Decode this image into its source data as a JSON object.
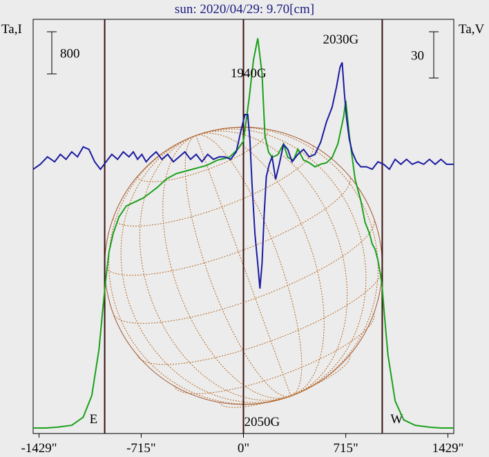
{
  "chart_data": {
    "type": "line",
    "title": "sun: 2020/04/29: 9.70[cm]",
    "y_left_label": "Ta,I",
    "y_right_label": "Ta,V",
    "scale_bar_left": "800",
    "scale_bar_right": "30",
    "x_ticks": [
      "-1429\"",
      "-715\"",
      "0\"",
      "715\"",
      "1429\""
    ],
    "x_tick_values": [
      -1429,
      -715,
      0,
      715,
      1429
    ],
    "xlim": [
      -1470,
      1470
    ],
    "limb_markers": [
      {
        "label": "E",
        "x": -970
      },
      {
        "label": "W",
        "x": 970
      }
    ],
    "annotations": [
      {
        "label": "1940G",
        "x": 35
      },
      {
        "label": "2030G",
        "x": 680
      },
      {
        "label": "2050G",
        "x": 130
      }
    ],
    "series": [
      {
        "color": "#1aa01a",
        "x": [
          -1470,
          -1380,
          -1300,
          -1200,
          -1120,
          -1060,
          -1010,
          -985,
          -960,
          -940,
          -910,
          -870,
          -820,
          -780,
          -740,
          -700,
          -650,
          -600,
          -540,
          -470,
          -400,
          -330,
          -260,
          -180,
          -100,
          -40,
          0,
          40,
          70,
          100,
          130,
          150,
          175,
          200,
          240,
          280,
          310,
          350,
          380,
          420,
          460,
          500,
          540,
          580,
          620,
          660,
          700,
          715,
          740,
          780,
          820,
          850,
          880,
          900,
          920,
          940,
          960,
          970,
          985,
          1010,
          1060,
          1120,
          1200,
          1300,
          1380,
          1470
        ],
        "y": [
          0,
          0,
          3,
          10,
          40,
          120,
          290,
          430,
          560,
          650,
          720,
          780,
          820,
          830,
          840,
          850,
          870,
          890,
          920,
          940,
          950,
          960,
          970,
          990,
          1000,
          1030,
          1060,
          1220,
          1360,
          1440,
          1310,
          1080,
          1020,
          1000,
          1010,
          1050,
          1000,
          990,
          1030,
          990,
          980,
          965,
          975,
          980,
          1000,
          1050,
          1150,
          1210,
          1080,
          920,
          840,
          760,
          720,
          680,
          660,
          620,
          560,
          520,
          420,
          270,
          100,
          30,
          10,
          3,
          0,
          0
        ]
      },
      {
        "color": "#1a1aa0",
        "x": [
          -1470,
          -1420,
          -1370,
          -1320,
          -1280,
          -1240,
          -1200,
          -1160,
          -1120,
          -1080,
          -1040,
          -1000,
          -960,
          -920,
          -880,
          -840,
          -800,
          -770,
          -740,
          -710,
          -680,
          -650,
          -610,
          -570,
          -530,
          -490,
          -450,
          -410,
          -370,
          -330,
          -290,
          -250,
          -210,
          -170,
          -130,
          -90,
          -50,
          -20,
          10,
          30,
          45,
          60,
          80,
          100,
          115,
          130,
          145,
          160,
          180,
          200,
          225,
          250,
          280,
          310,
          340,
          380,
          420,
          460,
          500,
          540,
          580,
          620,
          650,
          675,
          690,
          705,
          720,
          740,
          760,
          790,
          820,
          860,
          900,
          940,
          980,
          1020,
          1060,
          1100,
          1140,
          1180,
          1220,
          1260,
          1300,
          1340,
          1380,
          1420,
          1470
        ],
        "y": [
          -2,
          0,
          3,
          1,
          4,
          2,
          5,
          3,
          7,
          6,
          1,
          -2,
          1,
          4,
          2,
          5,
          3,
          5,
          2,
          4,
          1,
          3,
          5,
          2,
          4,
          1,
          3,
          5,
          2,
          4,
          1,
          4,
          2,
          3,
          3,
          2,
          5,
          13,
          20,
          20,
          10,
          -8,
          -28,
          -40,
          -50,
          -40,
          -20,
          -5,
          0,
          3,
          -6,
          0,
          8,
          6,
          1,
          4,
          6,
          3,
          4,
          9,
          17,
          23,
          31,
          39,
          41,
          29,
          19,
          10,
          5,
          1,
          -1,
          -1,
          -2,
          1,
          0,
          -2,
          2,
          0,
          2,
          0,
          1,
          0,
          2,
          0,
          2,
          0,
          0
        ]
      }
    ]
  }
}
